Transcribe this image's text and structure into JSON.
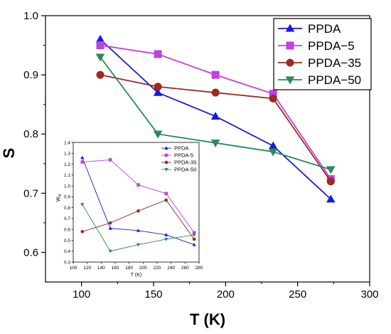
{
  "chart_data": [
    {
      "type": "line",
      "xlabel": "T (K)",
      "ylabel": "S",
      "xlim": [
        75,
        300
      ],
      "ylim": [
        0.55,
        1.0
      ],
      "xticks": [
        100,
        150,
        200,
        250,
        300
      ],
      "yticks": [
        0.6,
        0.7,
        0.8,
        0.9,
        1.0
      ],
      "xtick_labels": [
        "100",
        "150",
        "200",
        "250",
        "300"
      ],
      "ytick_labels": [
        "0.6",
        "0.7",
        "0.8",
        "0.9",
        "1.0"
      ],
      "legend_position": "top-right",
      "series": [
        {
          "name": "PPDA",
          "color": "#1a1adc",
          "marker": "triangle-up",
          "x": [
            113,
            153,
            193,
            233,
            273
          ],
          "y": [
            0.96,
            0.87,
            0.83,
            0.78,
            0.69
          ]
        },
        {
          "name": "PPDA−5",
          "color": "#c040e0",
          "marker": "square",
          "x": [
            113,
            153,
            193,
            233,
            273
          ],
          "y": [
            0.95,
            0.935,
            0.9,
            0.868,
            0.724
          ]
        },
        {
          "name": "PPDA−35",
          "color": "#a0281e",
          "marker": "circle",
          "x": [
            113,
            153,
            193,
            233,
            273
          ],
          "y": [
            0.9,
            0.88,
            0.87,
            0.86,
            0.72
          ]
        },
        {
          "name": "PPDA−50",
          "color": "#2a8a5a",
          "marker": "triangle-down",
          "x": [
            113,
            153,
            193,
            233,
            273
          ],
          "y": [
            0.93,
            0.8,
            0.785,
            0.77,
            0.74
          ]
        }
      ]
    },
    {
      "type": "line",
      "xlabel": "T (K)",
      "ylabel": "W",
      "ylabel_sub": "fit",
      "xlim": [
        100,
        280
      ],
      "ylim": [
        0.3,
        1.4
      ],
      "xticks": [
        100,
        120,
        140,
        160,
        180,
        200,
        220,
        240,
        260,
        280
      ],
      "yticks": [
        0.3,
        0.4,
        0.5,
        0.6,
        0.7,
        0.8,
        0.9,
        1.0,
        1.1,
        1.2,
        1.3,
        1.4
      ],
      "xtick_labels": [
        "100",
        "120",
        "140",
        "160",
        "180",
        "200",
        "220",
        "240",
        "260",
        "280"
      ],
      "ytick_labels": [
        "0.3",
        "0.4",
        "0.5",
        "0.6",
        "0.7",
        "0.8",
        "0.9",
        "1.0",
        "1.1",
        "1.2",
        "1.3",
        "1.4"
      ],
      "legend_position": "top-right",
      "series": [
        {
          "name": "PPDA",
          "color": "#1a1adc",
          "marker": "triangle-up",
          "x": [
            113,
            153,
            193,
            233,
            273
          ],
          "y": [
            1.26,
            0.61,
            0.59,
            0.55,
            0.46
          ]
        },
        {
          "name": "PPDA-5",
          "color": "#c040e0",
          "marker": "square",
          "x": [
            113,
            153,
            193,
            233,
            273
          ],
          "y": [
            1.22,
            1.24,
            1.01,
            0.93,
            0.57
          ]
        },
        {
          "name": "PPDA-35",
          "color": "#a0281e",
          "marker": "circle",
          "x": [
            113,
            153,
            193,
            233,
            273
          ],
          "y": [
            0.58,
            0.66,
            0.77,
            0.87,
            0.51
          ]
        },
        {
          "name": "PPDA-50",
          "color": "#2a8a5a",
          "marker": "triangle-down",
          "x": [
            113,
            153,
            193,
            233,
            273
          ],
          "y": [
            0.83,
            0.4,
            0.46,
            0.51,
            0.55
          ]
        }
      ]
    }
  ]
}
